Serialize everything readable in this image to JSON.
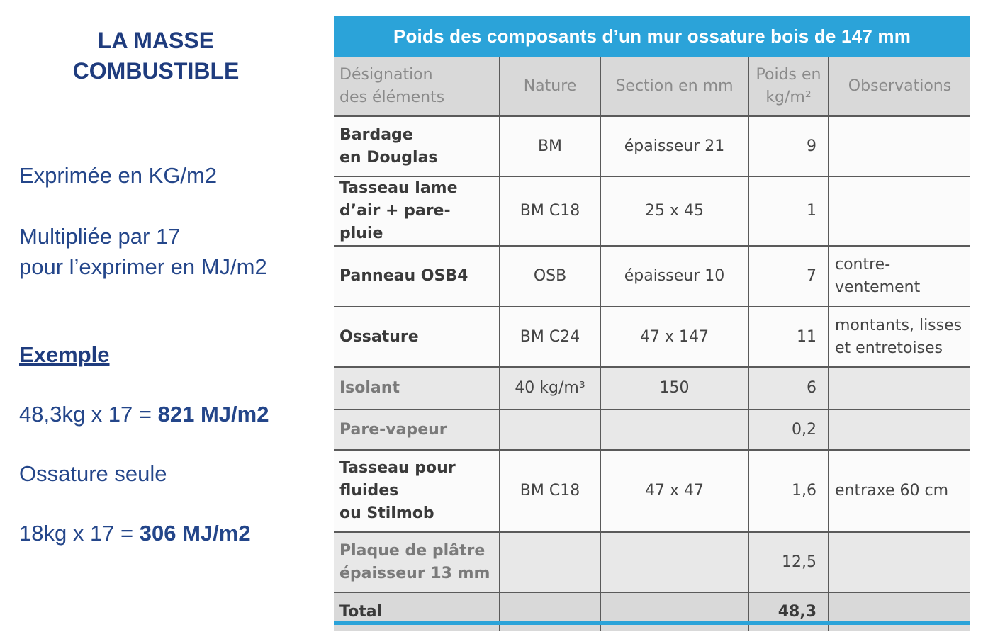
{
  "left": {
    "title_line1": "LA MASSE",
    "title_line2": "COMBUSTIBLE",
    "expressed": "Exprimée en KG/m2",
    "multiplied_line1": "Multipliée par 17",
    "multiplied_line2": "pour l’exprimer en MJ/m2",
    "example_heading": "Exemple",
    "example1_calc": "48,3kg x 17 = ",
    "example1_result": "821 MJ/m2",
    "ossature_label": "Ossature seule",
    "example2_calc": "18kg x 17 = ",
    "example2_result": "306 MJ/m2"
  },
  "table": {
    "title": "Poids des composants d’un mur ossature bois de 147 mm",
    "headers": {
      "designation_line1": "Désignation",
      "designation_line2": "des éléments",
      "nature": "Nature",
      "section": "Section en mm",
      "poids_line1": "Poids en",
      "poids_line2": "kg/m²",
      "observations": "Observations"
    },
    "rows": [
      {
        "designation_line1": "Bardage",
        "designation_line2": "en Douglas",
        "nature": "BM",
        "section": "épaisseur 21",
        "poids": "9",
        "obs_line1": "",
        "obs_line2": ""
      },
      {
        "designation_line1": "Tasseau lame",
        "designation_line2": "d’air + pare-pluie",
        "nature": "BM C18",
        "section": "25 x 45",
        "poids": "1",
        "obs_line1": "",
        "obs_line2": ""
      },
      {
        "designation_line1": "Panneau OSB4",
        "designation_line2": "",
        "nature": "OSB",
        "section": "épaisseur 10",
        "poids": "7",
        "obs_line1": "contre-",
        "obs_line2": "ventement"
      },
      {
        "designation_line1": "Ossature",
        "designation_line2": "",
        "nature": "BM C24",
        "section": "47 x 147",
        "poids": "11",
        "obs_line1": "montants, lisses",
        "obs_line2": "et entretoises"
      },
      {
        "designation_line1": "Isolant",
        "designation_line2": "",
        "nature": "40 kg/m³",
        "section": "150",
        "poids": "6",
        "obs_line1": "",
        "obs_line2": ""
      },
      {
        "designation_line1": "Pare-vapeur",
        "designation_line2": "",
        "nature": "",
        "section": "",
        "poids": "0,2",
        "obs_line1": "",
        "obs_line2": ""
      },
      {
        "designation_line1": "Tasseau pour",
        "designation_line2": "fluides",
        "designation_line3": "ou Stilmob",
        "nature": "BM C18",
        "section": "47 x 47",
        "poids": "1,6",
        "obs_line1": "entraxe 60 cm",
        "obs_line2": ""
      },
      {
        "designation_line1": "Plaque de plâtre",
        "designation_line2": "épaisseur 13 mm",
        "nature": "",
        "section": "",
        "poids": "12,5",
        "obs_line1": "",
        "obs_line2": ""
      }
    ],
    "total_label": "Total",
    "total_value": "48,3"
  }
}
